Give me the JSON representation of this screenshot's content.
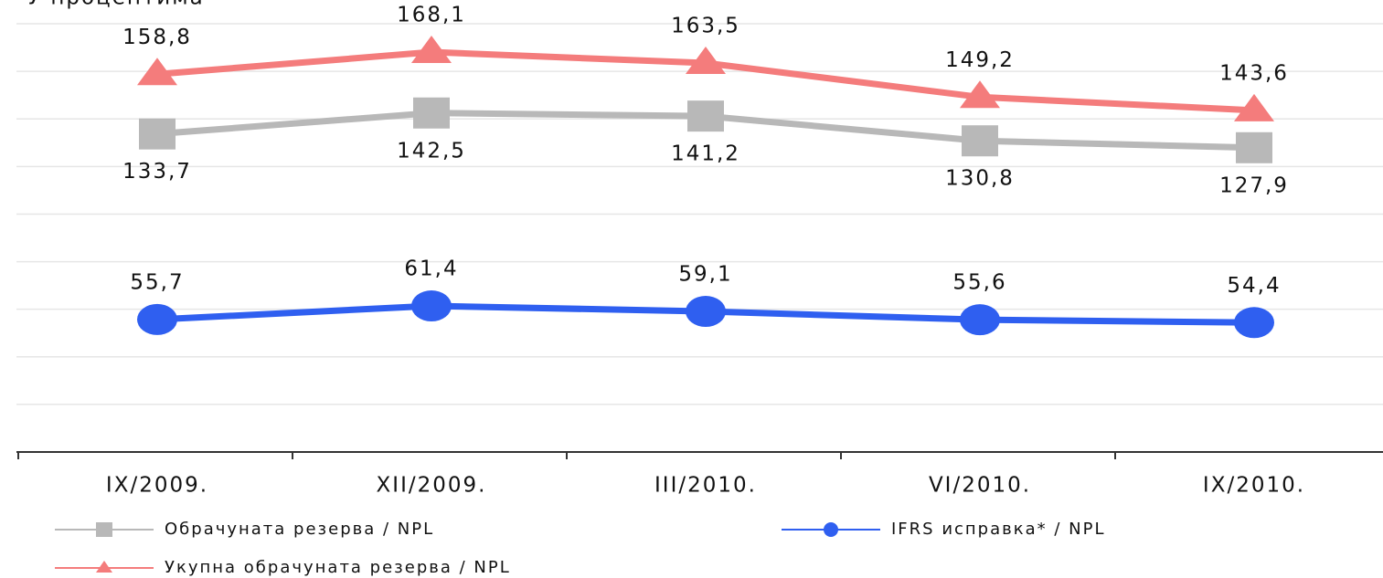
{
  "chart_data": {
    "type": "line",
    "y_label": "У процентима",
    "categories": [
      "IX/2009.",
      "XII/2009.",
      "III/2010.",
      "VI/2010.",
      "IX/2010."
    ],
    "series": [
      {
        "name": "Обрачуната резерва / NPL",
        "color": "#b8b8b8",
        "marker": "square",
        "values": [
          133.7,
          142.5,
          141.2,
          130.8,
          127.9
        ],
        "value_labels": [
          "133,7",
          "142,5",
          "141,2",
          "130,8",
          "127,9"
        ],
        "label_position": "below"
      },
      {
        "name": "IFRS исправка* / NPL",
        "color": "#2f5ff0",
        "marker": "circle",
        "values": [
          55.7,
          61.4,
          59.1,
          55.6,
          54.4
        ],
        "value_labels": [
          "55,7",
          "61,4",
          "59,1",
          "55,6",
          "54,4"
        ],
        "label_position": "above"
      },
      {
        "name": "Укупна обрачуната резерва / NPL",
        "color": "#f47c7c",
        "marker": "triangle",
        "values": [
          158.8,
          168.1,
          163.5,
          149.2,
          143.6
        ],
        "value_labels": [
          "158,8",
          "168,1",
          "163,5",
          "149,2",
          "143,6"
        ],
        "label_position": "above"
      }
    ],
    "ylim": [
      0,
      190
    ],
    "yticks": [
      20,
      40,
      60,
      80,
      100,
      120,
      140,
      160,
      180
    ],
    "grid": true
  }
}
